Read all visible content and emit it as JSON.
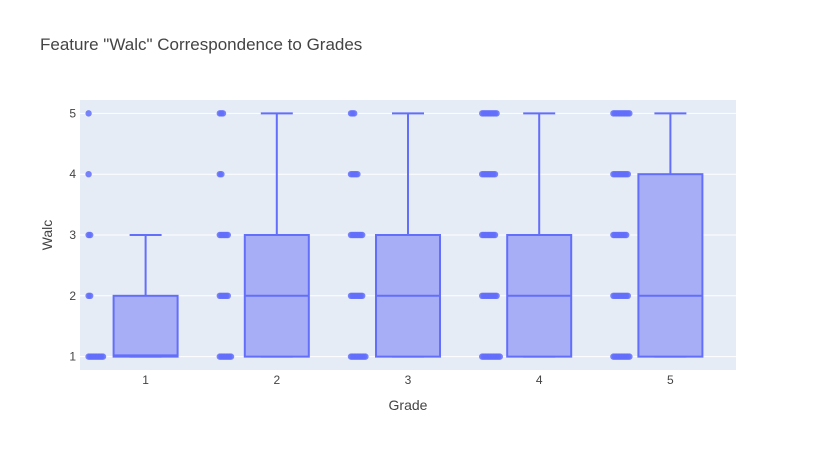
{
  "chart_data": {
    "type": "box",
    "title": "Feature \"Walc\" Correspondence to Grades",
    "xlabel": "Grade",
    "ylabel": "Walc",
    "categories": [
      "1",
      "2",
      "3",
      "4",
      "5"
    ],
    "y_ticks": [
      "1",
      "2",
      "3",
      "4",
      "5"
    ],
    "ylim": [
      0.78,
      5.22
    ],
    "grid": true,
    "colors": {
      "plot_background": "#e5ecf6",
      "grid": "#ffffff",
      "box_fill": "#a4abf5",
      "box_line": "#636efa",
      "points": "#636efa"
    },
    "boxes": [
      {
        "category": "1",
        "min": 1,
        "q1": 1,
        "median": 1.02,
        "q3": 2,
        "max": 3,
        "points": [
          1,
          1,
          1,
          1,
          1,
          1,
          1,
          1,
          1,
          1,
          2,
          2,
          3,
          3,
          4,
          5
        ]
      },
      {
        "category": "2",
        "min": 1,
        "q1": 1,
        "median": 2,
        "q3": 3,
        "max": 5,
        "points": [
          1,
          1,
          1,
          1,
          1,
          1,
          1,
          1,
          2,
          2,
          2,
          2,
          2,
          2,
          3,
          3,
          3,
          3,
          3,
          3,
          4,
          4,
          5,
          5,
          5
        ]
      },
      {
        "category": "3",
        "min": 1,
        "q1": 1,
        "median": 2,
        "q3": 3,
        "max": 5,
        "points": [
          1,
          1,
          1,
          1,
          1,
          1,
          1,
          1,
          1,
          1,
          2,
          2,
          2,
          2,
          2,
          2,
          2,
          2,
          3,
          3,
          3,
          3,
          3,
          3,
          3,
          3,
          4,
          4,
          4,
          4,
          4,
          5,
          5,
          5
        ]
      },
      {
        "category": "4",
        "min": 1,
        "q1": 1,
        "median": 2,
        "q3": 3,
        "max": 5,
        "points": [
          1,
          1,
          1,
          1,
          1,
          1,
          1,
          1,
          1,
          1,
          1,
          1,
          2,
          2,
          2,
          2,
          2,
          2,
          2,
          2,
          2,
          2,
          3,
          3,
          3,
          3,
          3,
          3,
          3,
          3,
          3,
          4,
          4,
          4,
          4,
          4,
          4,
          4,
          4,
          4,
          5,
          5,
          5,
          5,
          5,
          5,
          5,
          5,
          5,
          5
        ]
      },
      {
        "category": "5",
        "min": 1,
        "q1": 1,
        "median": 2,
        "q3": 4,
        "max": 5,
        "points": [
          1,
          1,
          1,
          1,
          1,
          1,
          1,
          1,
          1,
          1,
          1,
          2,
          2,
          2,
          2,
          2,
          2,
          2,
          2,
          2,
          2,
          3,
          3,
          3,
          3,
          3,
          3,
          3,
          3,
          3,
          4,
          4,
          4,
          4,
          4,
          4,
          4,
          4,
          4,
          4,
          5,
          5,
          5,
          5,
          5,
          5,
          5,
          5,
          5,
          5,
          5
        ]
      }
    ]
  }
}
